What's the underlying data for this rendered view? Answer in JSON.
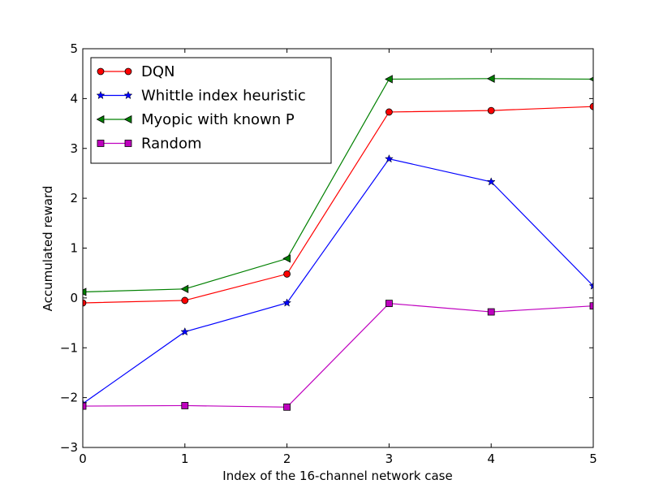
{
  "chart_data": {
    "type": "line",
    "title": "",
    "xlabel": "Index of the 16-channel network case",
    "ylabel": "Accumulated reward",
    "x": [
      0,
      1,
      2,
      3,
      4,
      5
    ],
    "xlim": [
      0,
      5
    ],
    "ylim": [
      -3,
      5
    ],
    "xticks": [
      0,
      1,
      2,
      3,
      4,
      5
    ],
    "yticks": [
      -3,
      -2,
      -1,
      0,
      1,
      2,
      3,
      4,
      5
    ],
    "xtick_labels": [
      "0",
      "1",
      "2",
      "3",
      "4",
      "5"
    ],
    "ytick_labels": [
      "−3",
      "−2",
      "−1",
      "0",
      "1",
      "2",
      "3",
      "4",
      "5"
    ],
    "grid": false,
    "legend_position": "top-left",
    "series": [
      {
        "name": "DQN",
        "values": [
          -0.1,
          -0.05,
          0.48,
          3.73,
          3.76,
          3.84
        ],
        "color": "#ff0000",
        "marker": "circle"
      },
      {
        "name": "Whittle index heuristic",
        "values": [
          -2.12,
          -0.68,
          -0.1,
          2.79,
          2.33,
          0.24
        ],
        "color": "#0000ff",
        "marker": "star"
      },
      {
        "name": "Myopic with known P",
        "values": [
          0.12,
          0.18,
          0.79,
          4.39,
          4.4,
          4.39
        ],
        "color": "#008000",
        "marker": "triangle-left"
      },
      {
        "name": "Random",
        "values": [
          -2.17,
          -2.16,
          -2.19,
          -0.11,
          -0.28,
          -0.16
        ],
        "color": "#bf00bf",
        "marker": "square"
      }
    ]
  }
}
